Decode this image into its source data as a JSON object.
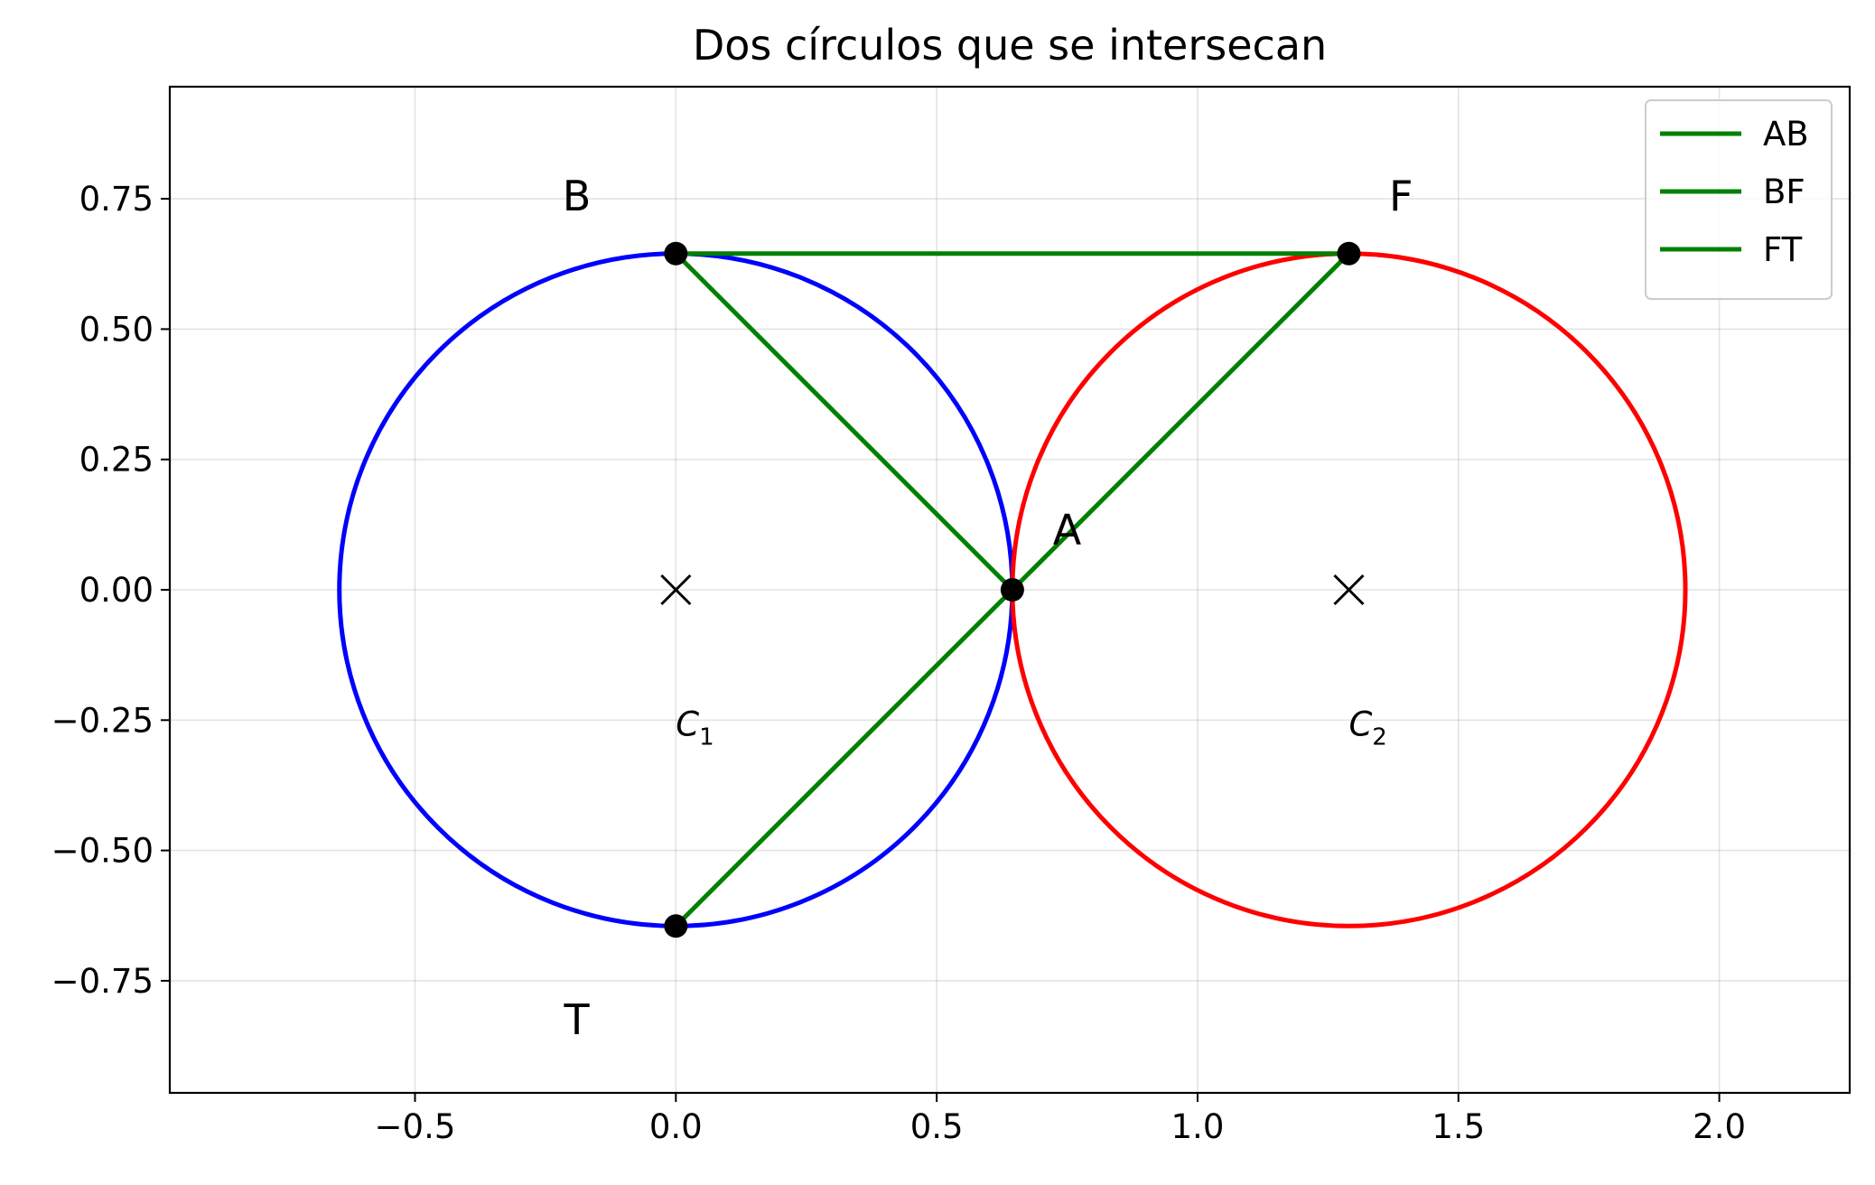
{
  "chart_data": {
    "type": "line",
    "title": "Dos círculos que se intersecan",
    "xlabel": "",
    "ylabel": "",
    "xlim": [
      -0.97,
      2.25
    ],
    "ylim": [
      -0.965,
      0.965
    ],
    "grid": true,
    "legend_placement": "top-right",
    "x_ticks": [
      -0.5,
      0.0,
      0.5,
      1.0,
      1.5,
      2.0
    ],
    "x_tick_labels": [
      "−0.5",
      "0.0",
      "0.5",
      "1.0",
      "1.5",
      "2.0"
    ],
    "y_ticks": [
      0.75,
      0.5,
      0.25,
      0.0,
      -0.25,
      -0.5,
      -0.75
    ],
    "y_tick_labels": [
      "0.75",
      "0.50",
      "0.25",
      "0.00",
      "−0.25",
      "−0.50",
      "−0.75"
    ],
    "circles": [
      {
        "label_main": "C",
        "label_sub": "1",
        "center": [
          0.0,
          0.0
        ],
        "radius": 0.645,
        "color": "#0000ff",
        "label_pos": [
          0.0,
          -0.28
        ]
      },
      {
        "label_main": "C",
        "label_sub": "2",
        "center": [
          1.29,
          0.0
        ],
        "radius": 0.645,
        "color": "#ff0000",
        "label_pos": [
          1.29,
          -0.28
        ]
      }
    ],
    "points": [
      {
        "name": "A",
        "x": 0.645,
        "y": 0.0,
        "label_x": 0.75,
        "label_y": 0.115
      },
      {
        "name": "B",
        "x": 0.0,
        "y": 0.645,
        "label_x": -0.19,
        "label_y": 0.755
      },
      {
        "name": "F",
        "x": 1.29,
        "y": 0.645,
        "label_x": 1.39,
        "label_y": 0.755
      },
      {
        "name": "T",
        "x": 0.0,
        "y": -0.645,
        "label_x": -0.19,
        "label_y": -0.825
      }
    ],
    "center_markers": [
      [
        0.0,
        0.0
      ],
      [
        1.29,
        0.0
      ]
    ],
    "series": [
      {
        "name": "AB",
        "color": "#008000",
        "x": [
          0.645,
          0.0
        ],
        "y": [
          0.0,
          0.645
        ]
      },
      {
        "name": "BF",
        "color": "#008000",
        "x": [
          0.0,
          1.29
        ],
        "y": [
          0.645,
          0.645
        ]
      },
      {
        "name": "FT",
        "color": "#008000",
        "x": [
          1.29,
          0.0
        ],
        "y": [
          0.645,
          -0.645
        ]
      }
    ]
  }
}
